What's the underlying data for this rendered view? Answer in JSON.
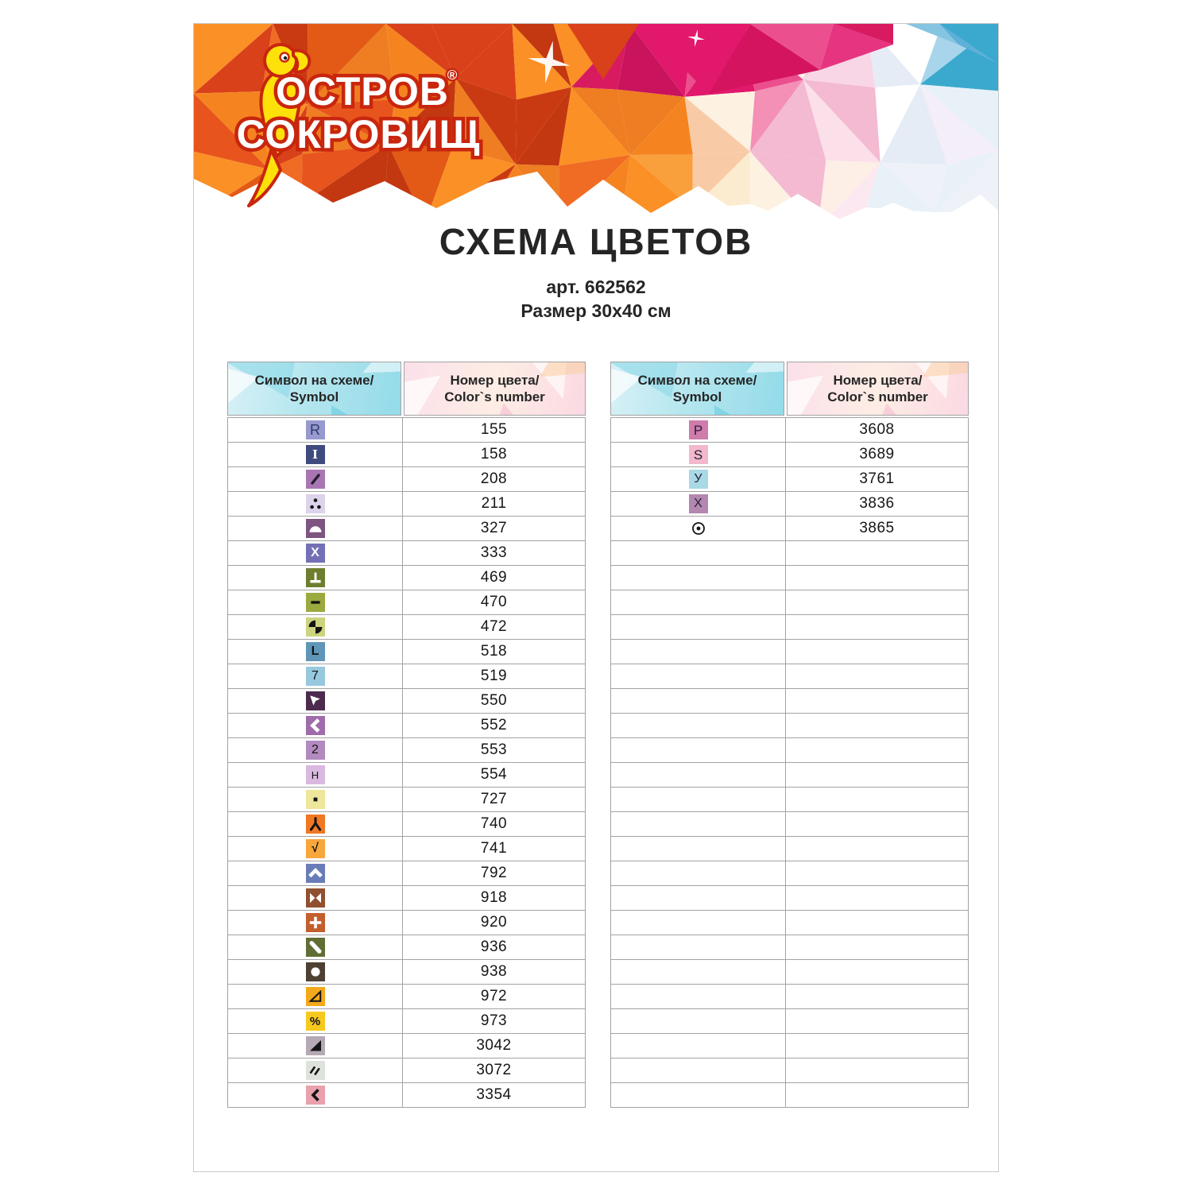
{
  "brand": {
    "name_line1": "ОСТРОВ",
    "name_line2": "СОКРОВИЩ",
    "registered_mark": "®"
  },
  "title": "СХЕМА ЦВЕТОВ",
  "article": "арт. 662562",
  "size": "Размер 30x40 см",
  "table_header": {
    "symbol_ru": "Символ на схеме/",
    "symbol_en": "Symbol",
    "number_ru": "Номер цвета/",
    "number_en": "Color`s number"
  },
  "accent_colors": {
    "banner_orange": "#e8541d",
    "banner_magenta": "#e2186c",
    "banner_teal": "#3aa9cd",
    "logo_yellow": "#ffe10a",
    "logo_red_outline": "#c8260e",
    "header_cyan": "#aee4ef",
    "header_pink": "#fbdce6",
    "table_border": "#a3a3a3",
    "text_dark": "#252525"
  },
  "left_table": {
    "rows": [
      {
        "number": "155",
        "symbol": {
          "icon": "letter-r",
          "glyph": "R",
          "bg": "#9799cf",
          "fg": "#2d3a6d",
          "size": 18
        }
      },
      {
        "number": "158",
        "symbol": {
          "icon": "serif-i",
          "glyph": "I",
          "bg": "#3f4a7e",
          "fg": "#ffffff",
          "bold": true,
          "serif": true,
          "size": 15
        }
      },
      {
        "number": "208",
        "symbol": {
          "icon": "diagonal-slash",
          "shape": "slash",
          "bg": "#a976b3",
          "fg": "#231f2e"
        }
      },
      {
        "number": "211",
        "symbol": {
          "icon": "three-dots",
          "shape": "three-dots",
          "bg": "#ddd3ea",
          "fg": "#141414"
        }
      },
      {
        "number": "327",
        "symbol": {
          "icon": "half-circle",
          "shape": "dome",
          "bg": "#7e5480",
          "fg": "#ffffff"
        }
      },
      {
        "number": "333",
        "symbol": {
          "icon": "letter-x",
          "glyph": "X",
          "bg": "#7370b6",
          "fg": "#ffffff",
          "bold": true,
          "size": 16
        }
      },
      {
        "number": "469",
        "symbol": {
          "icon": "up-tack",
          "shape": "up-tack",
          "bg": "#6d7e2f",
          "fg": "#ffffff"
        }
      },
      {
        "number": "470",
        "symbol": {
          "icon": "minus",
          "shape": "minus",
          "bg": "#9ca93f",
          "fg": "#141414"
        }
      },
      {
        "number": "472",
        "symbol": {
          "icon": "pinwheel",
          "shape": "pinwheel",
          "bg": "#ccd47e",
          "fg": "#141414"
        }
      },
      {
        "number": "518",
        "symbol": {
          "icon": "letter-l",
          "glyph": "L",
          "bg": "#5f96b8",
          "fg": "#141414",
          "bold": true,
          "size": 16
        }
      },
      {
        "number": "519",
        "symbol": {
          "icon": "digit-7",
          "glyph": "7",
          "bg": "#97c8de",
          "fg": "#141414",
          "size": 16
        }
      },
      {
        "number": "550",
        "symbol": {
          "icon": "arrow-up-left",
          "shape": "arrow-nw",
          "bg": "#4c2b4f",
          "fg": "#ffffff"
        }
      },
      {
        "number": "552",
        "symbol": {
          "icon": "chevron-left-heavy",
          "shape": "chevron-left-heavy",
          "bg": "#a06bab",
          "fg": "#ffffff"
        }
      },
      {
        "number": "553",
        "symbol": {
          "icon": "digit-2",
          "glyph": "2",
          "bg": "#b38abf",
          "fg": "#141414",
          "size": 16
        }
      },
      {
        "number": "554",
        "symbol": {
          "icon": "letter-h",
          "glyph": "H",
          "bg": "#d9b9df",
          "fg": "#141414",
          "size": 13
        }
      },
      {
        "number": "727",
        "symbol": {
          "icon": "small-square",
          "shape": "small-square",
          "bg": "#eee79b",
          "fg": "#141414"
        }
      },
      {
        "number": "740",
        "symbol": {
          "icon": "inverted-y",
          "shape": "turned-y",
          "bg": "#f07723",
          "fg": "#141414"
        }
      },
      {
        "number": "741",
        "symbol": {
          "icon": "check-mark",
          "glyph": "√",
          "bg": "#f8a73c",
          "fg": "#141414",
          "bold": true,
          "size": 16
        }
      },
      {
        "number": "792",
        "symbol": {
          "icon": "chevron-up-heavy",
          "shape": "chevron-up-heavy",
          "bg": "#6a7cb8",
          "fg": "#ffffff"
        }
      },
      {
        "number": "918",
        "symbol": {
          "icon": "bowtie",
          "shape": "bowtie",
          "bg": "#91502f",
          "fg": "#ffffff"
        }
      },
      {
        "number": "920",
        "symbol": {
          "icon": "plus",
          "shape": "plus-heavy",
          "bg": "#c35e2d",
          "fg": "#ffffff"
        }
      },
      {
        "number": "936",
        "symbol": {
          "icon": "thick-diagonal",
          "shape": "diag-thick",
          "bg": "#606e33",
          "fg": "#ffffff"
        }
      },
      {
        "number": "938",
        "symbol": {
          "icon": "circle",
          "shape": "dot",
          "bg": "#4c4132",
          "fg": "#ffffff"
        }
      },
      {
        "number": "972",
        "symbol": {
          "icon": "triangle-outline",
          "shape": "triangle-outline",
          "bg": "#f2a91c",
          "fg": "#141414"
        }
      },
      {
        "number": "973",
        "symbol": {
          "icon": "percent",
          "glyph": "%",
          "bg": "#f6c91f",
          "fg": "#141414",
          "bold": true,
          "size": 15
        }
      },
      {
        "number": "3042",
        "symbol": {
          "icon": "triangle-filled",
          "shape": "triangle-solid",
          "bg": "#b5a9b6",
          "fg": "#141414"
        }
      },
      {
        "number": "3072",
        "symbol": {
          "icon": "double-slash",
          "shape": "double-slash",
          "bg": "#dde3da",
          "fg": "#141414"
        }
      },
      {
        "number": "3354",
        "symbol": {
          "icon": "chevron-left",
          "shape": "chevron-left",
          "bg": "#e8a1ad",
          "fg": "#141414"
        }
      }
    ]
  },
  "right_table": {
    "rows": [
      {
        "number": "3608",
        "symbol": {
          "icon": "letter-p",
          "glyph": "P",
          "bg": "#cf7bab",
          "fg": "#23203a",
          "size": 17
        }
      },
      {
        "number": "3689",
        "symbol": {
          "icon": "letter-s",
          "glyph": "S",
          "bg": "#f3b8cb",
          "fg": "#23203a",
          "size": 17
        }
      },
      {
        "number": "3761",
        "symbol": {
          "icon": "letter-u-cyrillic",
          "glyph": "У",
          "bg": "#a8d9e4",
          "fg": "#23203a",
          "size": 16
        }
      },
      {
        "number": "3836",
        "symbol": {
          "icon": "letter-x",
          "glyph": "X",
          "bg": "#b487b0",
          "fg": "#23203a",
          "size": 16
        }
      },
      {
        "number": "3865",
        "symbol": {
          "icon": "circled-dot",
          "shape": "circle-dot",
          "bg": "transparent",
          "fg": "#141414"
        }
      }
    ],
    "empty_row_count": 23
  }
}
